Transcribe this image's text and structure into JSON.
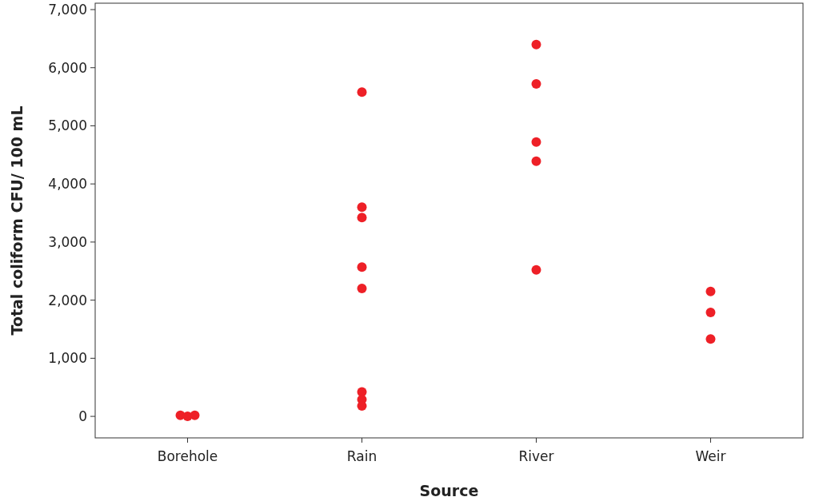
{
  "chart_data": {
    "type": "scatter",
    "xlabel": "Source",
    "ylabel": "Total coliform CFU/ 100 mL",
    "categories": [
      "Borehole",
      "Rain",
      "River",
      "Weir"
    ],
    "series": [
      {
        "color": "#ee2027",
        "x": [
          "Borehole",
          "Borehole",
          "Borehole",
          "Rain",
          "Rain",
          "Rain",
          "Rain",
          "Rain",
          "Rain",
          "Rain",
          "Rain",
          "River",
          "River",
          "River",
          "River",
          "River",
          "Weir",
          "Weir",
          "Weir"
        ],
        "values": [
          20,
          0,
          20,
          5580,
          3600,
          3420,
          2570,
          2200,
          420,
          290,
          180,
          6400,
          5720,
          4720,
          4390,
          2520,
          2150,
          1790,
          1330
        ]
      }
    ],
    "ylim": [
      -370,
      7110
    ],
    "yticks": [
      {
        "value": 0,
        "label": "0"
      },
      {
        "value": 1000,
        "label": "1,000"
      },
      {
        "value": 2000,
        "label": "2,000"
      },
      {
        "value": 3000,
        "label": "3,000"
      },
      {
        "value": 4000,
        "label": "4,000"
      },
      {
        "value": 5000,
        "label": "5,000"
      },
      {
        "value": 6000,
        "label": "6,000"
      },
      {
        "value": 7000,
        "label": "7,000"
      }
    ],
    "grid": false,
    "marker": "circle"
  }
}
